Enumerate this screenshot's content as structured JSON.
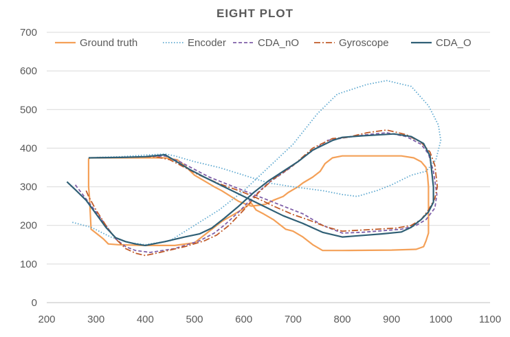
{
  "chart_data": {
    "type": "scatter",
    "title": "EIGHT PLOT",
    "xlabel": "",
    "ylabel": "",
    "xlim": [
      200,
      1100
    ],
    "ylim": [
      0,
      700
    ],
    "xticks": [
      200,
      300,
      400,
      500,
      600,
      700,
      800,
      900,
      1000,
      1100
    ],
    "yticks": [
      0,
      100,
      200,
      300,
      400,
      500,
      600,
      700
    ],
    "grid": "horizontal",
    "legend_position": "top",
    "series": [
      {
        "name": "Ground truth",
        "color": "#F4A057",
        "dash": "solid",
        "points": [
          [
            288,
            375
          ],
          [
            285,
            372
          ],
          [
            285,
            300
          ],
          [
            287,
            270
          ],
          [
            290,
            190
          ],
          [
            300,
            180
          ],
          [
            315,
            165
          ],
          [
            325,
            152
          ],
          [
            345,
            150
          ],
          [
            400,
            148
          ],
          [
            460,
            148
          ],
          [
            500,
            155
          ],
          [
            530,
            185
          ],
          [
            555,
            210
          ],
          [
            575,
            225
          ],
          [
            595,
            240
          ],
          [
            615,
            258
          ],
          [
            625,
            240
          ],
          [
            640,
            230
          ],
          [
            660,
            215
          ],
          [
            685,
            190
          ],
          [
            700,
            185
          ],
          [
            720,
            170
          ],
          [
            740,
            150
          ],
          [
            760,
            135
          ],
          [
            800,
            135
          ],
          [
            900,
            136
          ],
          [
            950,
            138
          ],
          [
            965,
            145
          ],
          [
            970,
            160
          ],
          [
            975,
            180
          ],
          [
            975,
            220
          ],
          [
            975,
            300
          ],
          [
            973,
            330
          ],
          [
            970,
            350
          ],
          [
            960,
            365
          ],
          [
            945,
            375
          ],
          [
            920,
            380
          ],
          [
            800,
            380
          ],
          [
            780,
            375
          ],
          [
            765,
            360
          ],
          [
            755,
            340
          ],
          [
            740,
            325
          ],
          [
            720,
            310
          ],
          [
            710,
            300
          ],
          [
            690,
            285
          ],
          [
            680,
            275
          ],
          [
            660,
            265
          ],
          [
            645,
            255
          ],
          [
            630,
            252
          ],
          [
            615,
            250
          ],
          [
            590,
            262
          ],
          [
            570,
            278
          ],
          [
            555,
            290
          ],
          [
            540,
            300
          ],
          [
            520,
            315
          ],
          [
            500,
            330
          ],
          [
            480,
            355
          ],
          [
            465,
            370
          ],
          [
            440,
            375
          ],
          [
            350,
            375
          ],
          [
            290,
            375
          ]
        ]
      },
      {
        "name": "Encoder",
        "color": "#5BA7CF",
        "dash": "1.5 2.5",
        "points": [
          [
            252,
            208
          ],
          [
            290,
            195
          ],
          [
            330,
            170
          ],
          [
            370,
            155
          ],
          [
            400,
            150
          ],
          [
            450,
            160
          ],
          [
            500,
            200
          ],
          [
            550,
            240
          ],
          [
            600,
            290
          ],
          [
            650,
            350
          ],
          [
            700,
            410
          ],
          [
            750,
            490
          ],
          [
            790,
            540
          ],
          [
            850,
            565
          ],
          [
            890,
            575
          ],
          [
            940,
            560
          ],
          [
            975,
            510
          ],
          [
            995,
            460
          ],
          [
            1000,
            420
          ],
          [
            990,
            370
          ],
          [
            970,
            340
          ],
          [
            940,
            330
          ],
          [
            900,
            305
          ],
          [
            870,
            290
          ],
          [
            830,
            275
          ],
          [
            800,
            280
          ],
          [
            760,
            290
          ],
          [
            700,
            300
          ],
          [
            650,
            310
          ],
          [
            600,
            330
          ],
          [
            550,
            350
          ],
          [
            500,
            365
          ],
          [
            460,
            380
          ],
          [
            440,
            385
          ],
          [
            400,
            382
          ],
          [
            350,
            378
          ],
          [
            300,
            376
          ]
        ]
      },
      {
        "name": "CDA_nO",
        "color": "#7F5FA8",
        "dash": "5 3",
        "points": [
          [
            258,
            305
          ],
          [
            270,
            285
          ],
          [
            285,
            260
          ],
          [
            300,
            235
          ],
          [
            320,
            200
          ],
          [
            340,
            165
          ],
          [
            360,
            145
          ],
          [
            380,
            135
          ],
          [
            410,
            130
          ],
          [
            460,
            140
          ],
          [
            510,
            160
          ],
          [
            540,
            180
          ],
          [
            560,
            200
          ],
          [
            590,
            235
          ],
          [
            620,
            275
          ],
          [
            650,
            310
          ],
          [
            690,
            345
          ],
          [
            730,
            385
          ],
          [
            770,
            420
          ],
          [
            810,
            428
          ],
          [
            850,
            435
          ],
          [
            890,
            440
          ],
          [
            930,
            430
          ],
          [
            960,
            410
          ],
          [
            975,
            385
          ],
          [
            985,
            340
          ],
          [
            992,
            280
          ],
          [
            988,
            245
          ],
          [
            970,
            215
          ],
          [
            950,
            200
          ],
          [
            920,
            190
          ],
          [
            870,
            185
          ],
          [
            840,
            182
          ],
          [
            800,
            180
          ],
          [
            760,
            200
          ],
          [
            720,
            230
          ],
          [
            690,
            245
          ],
          [
            650,
            265
          ],
          [
            620,
            280
          ],
          [
            600,
            290
          ],
          [
            560,
            310
          ],
          [
            530,
            325
          ],
          [
            500,
            345
          ],
          [
            470,
            365
          ],
          [
            440,
            380
          ],
          [
            410,
            378
          ],
          [
            360,
            376
          ],
          [
            290,
            375
          ]
        ]
      },
      {
        "name": "Gyroscope",
        "color": "#C05A28",
        "dash": "9 3 2 3",
        "points": [
          [
            280,
            290
          ],
          [
            285,
            275
          ],
          [
            300,
            240
          ],
          [
            320,
            200
          ],
          [
            340,
            165
          ],
          [
            360,
            140
          ],
          [
            380,
            128
          ],
          [
            400,
            122
          ],
          [
            430,
            130
          ],
          [
            480,
            145
          ],
          [
            520,
            160
          ],
          [
            545,
            175
          ],
          [
            570,
            200
          ],
          [
            600,
            240
          ],
          [
            630,
            285
          ],
          [
            660,
            320
          ],
          [
            700,
            355
          ],
          [
            740,
            400
          ],
          [
            780,
            425
          ],
          [
            810,
            428
          ],
          [
            850,
            440
          ],
          [
            890,
            447
          ],
          [
            930,
            435
          ],
          [
            960,
            415
          ],
          [
            978,
            390
          ],
          [
            988,
            355
          ],
          [
            993,
            300
          ],
          [
            988,
            270
          ],
          [
            975,
            240
          ],
          [
            960,
            215
          ],
          [
            940,
            200
          ],
          [
            910,
            193
          ],
          [
            870,
            190
          ],
          [
            840,
            188
          ],
          [
            800,
            185
          ],
          [
            770,
            195
          ],
          [
            730,
            215
          ],
          [
            700,
            228
          ],
          [
            660,
            250
          ],
          [
            620,
            275
          ],
          [
            590,
            290
          ],
          [
            550,
            308
          ],
          [
            510,
            330
          ],
          [
            480,
            350
          ],
          [
            450,
            370
          ],
          [
            420,
            378
          ],
          [
            380,
            377
          ],
          [
            290,
            375
          ]
        ]
      },
      {
        "name": "CDA_O",
        "color": "#2F5F75",
        "dash": "solid",
        "points": [
          [
            241,
            313
          ],
          [
            260,
            290
          ],
          [
            280,
            265
          ],
          [
            300,
            230
          ],
          [
            320,
            195
          ],
          [
            340,
            168
          ],
          [
            360,
            158
          ],
          [
            380,
            152
          ],
          [
            400,
            148
          ],
          [
            440,
            158
          ],
          [
            480,
            170
          ],
          [
            510,
            178
          ],
          [
            535,
            193
          ],
          [
            560,
            218
          ],
          [
            590,
            250
          ],
          [
            620,
            285
          ],
          [
            650,
            315
          ],
          [
            680,
            340
          ],
          [
            710,
            365
          ],
          [
            740,
            395
          ],
          [
            780,
            420
          ],
          [
            800,
            428
          ],
          [
            840,
            432
          ],
          [
            880,
            435
          ],
          [
            905,
            437
          ],
          [
            940,
            430
          ],
          [
            965,
            412
          ],
          [
            978,
            380
          ],
          [
            985,
            300
          ],
          [
            985,
            260
          ],
          [
            975,
            235
          ],
          [
            960,
            215
          ],
          [
            940,
            195
          ],
          [
            920,
            183
          ],
          [
            880,
            178
          ],
          [
            850,
            175
          ],
          [
            800,
            170
          ],
          [
            760,
            182
          ],
          [
            720,
            205
          ],
          [
            680,
            225
          ],
          [
            640,
            250
          ],
          [
            600,
            275
          ],
          [
            560,
            300
          ],
          [
            520,
            325
          ],
          [
            490,
            345
          ],
          [
            460,
            368
          ],
          [
            440,
            383
          ],
          [
            400,
            378
          ],
          [
            350,
            376
          ],
          [
            285,
            375
          ]
        ]
      }
    ]
  }
}
